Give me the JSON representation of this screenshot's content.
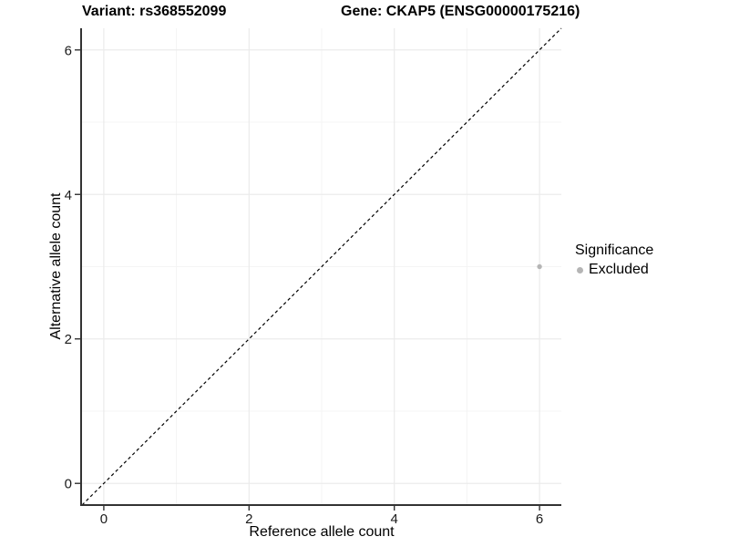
{
  "chart_data": {
    "type": "scatter",
    "title_variant": "Variant: rs368552099",
    "title_gene": "Gene: CKAP5 (ENSG00000175216)",
    "xlabel": "Reference allele count",
    "ylabel": "Alternative allele count",
    "xlim": [
      -0.3,
      6.3
    ],
    "ylim": [
      -0.3,
      6.3
    ],
    "xticks": [
      0,
      2,
      4,
      6
    ],
    "yticks": [
      0,
      2,
      4,
      6
    ],
    "x_minor": [
      1,
      3,
      5
    ],
    "y_minor": [
      1,
      3,
      5
    ],
    "grid": true,
    "series": [
      {
        "name": "Excluded",
        "color": "#b5b5b5",
        "point_radius": 2.7,
        "points": [
          {
            "x": 6,
            "y": 3
          }
        ]
      }
    ],
    "reference_line": {
      "type": "identity",
      "slope": 1,
      "intercept": 0,
      "style": "dashed",
      "color": "#000000"
    },
    "legend": {
      "title": "Significance",
      "position": "right",
      "items": [
        {
          "label": "Excluded",
          "color": "#b5b5b5"
        }
      ]
    },
    "colors": {
      "background": "#ffffff",
      "grid_major": "#ebebeb",
      "grid_minor": "#f4f4f4",
      "axis_line": "#333333",
      "tick_label": "#1a1a1a"
    }
  }
}
